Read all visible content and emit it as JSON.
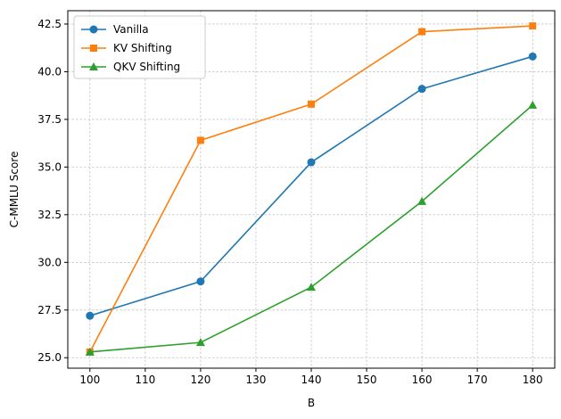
{
  "chart_data": {
    "type": "line",
    "x": [
      100,
      120,
      140,
      160,
      180
    ],
    "series": [
      {
        "name": "Vanilla",
        "values": [
          27.2,
          29.0,
          35.25,
          39.1,
          40.8
        ],
        "color": "#1f77b4",
        "marker": "circle"
      },
      {
        "name": "KV Shifting",
        "values": [
          25.3,
          36.4,
          38.3,
          42.1,
          42.4
        ],
        "color": "#ff7f0e",
        "marker": "square"
      },
      {
        "name": "QKV Shifting",
        "values": [
          25.3,
          25.8,
          28.7,
          33.2,
          38.25
        ],
        "color": "#2ca02c",
        "marker": "triangle"
      }
    ],
    "title": "",
    "xlabel": "B",
    "ylabel": "C-MMLU Score",
    "xlim": [
      96,
      184
    ],
    "ylim": [
      24.45,
      43.2
    ],
    "xticks": [
      100,
      110,
      120,
      130,
      140,
      150,
      160,
      170,
      180
    ],
    "xtick_labels": [
      "100",
      "110",
      "120",
      "130",
      "140",
      "150",
      "160",
      "170",
      "180"
    ],
    "yticks": [
      25.0,
      27.5,
      30.0,
      32.5,
      35.0,
      37.5,
      40.0,
      42.5
    ],
    "ytick_labels": [
      "25.0",
      "27.5",
      "30.0",
      "32.5",
      "35.0",
      "37.5",
      "40.0",
      "42.5"
    ],
    "grid": true,
    "legend": "upper-left"
  }
}
